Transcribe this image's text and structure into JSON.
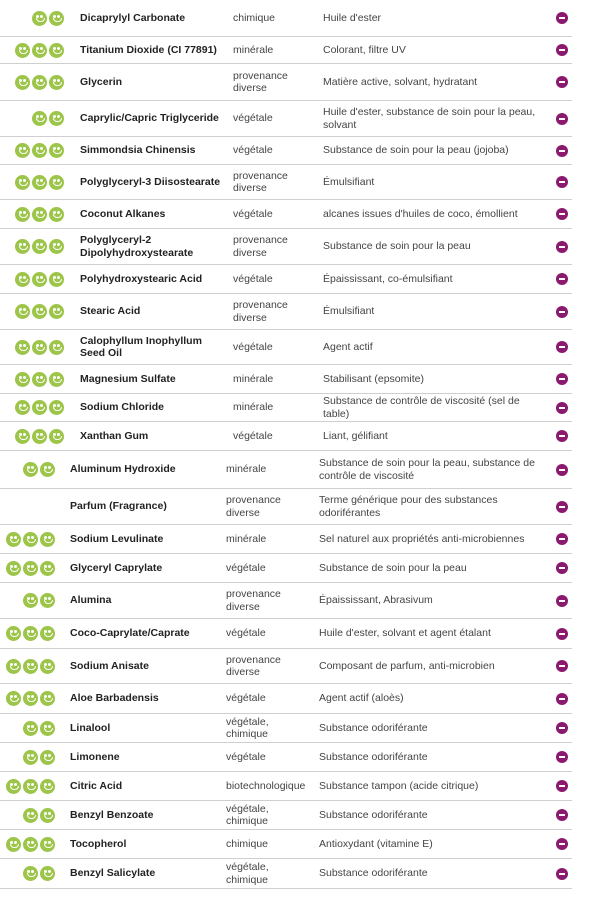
{
  "colors": {
    "smiley": "#9cc54a",
    "remove_button": "#8b1a6e",
    "divider": "#cfcfcf"
  },
  "ingredients": [
    {
      "rating": 2,
      "name": "Dicaprylyl Carbonate",
      "origin": "chimique",
      "function": "Huile d'ester"
    },
    {
      "rating": 3,
      "name": "Titanium Dioxide (CI 77891)",
      "origin": "minérale",
      "function": "Colorant, filtre UV"
    },
    {
      "rating": 3,
      "name": "Glycerin",
      "origin": "provenance diverse",
      "function": "Matière active, solvant, hydratant"
    },
    {
      "rating": 2,
      "name": "Caprylic/Capric Triglyceride",
      "origin": "végétale",
      "function": "Huile d'ester, substance de soin pour la peau, solvant"
    },
    {
      "rating": 3,
      "name": "Simmondsia Chinensis",
      "origin": "végétale",
      "function": "Substance de soin pour la peau (jojoba)"
    },
    {
      "rating": 3,
      "name": "Polyglyceryl-3 Diisostearate",
      "origin": "provenance diverse",
      "function": "Émulsifiant"
    },
    {
      "rating": 3,
      "name": "Coconut Alkanes",
      "origin": "végétale",
      "function": "alcanes issues d'huiles de coco, émollient"
    },
    {
      "rating": 3,
      "name": "Polyglyceryl-2 Dipolyhydroxystearate",
      "origin": "provenance diverse",
      "function": "Substance de soin pour la peau"
    },
    {
      "rating": 3,
      "name": "Polyhydroxystearic Acid",
      "origin": "végétale",
      "function": "Épaississant, co-émulsifiant"
    },
    {
      "rating": 3,
      "name": "Stearic Acid",
      "origin": "provenance diverse",
      "function": "Émulsifiant"
    },
    {
      "rating": 3,
      "name": "Calophyllum Inophyllum Seed Oil",
      "origin": "végétale",
      "function": "Agent actif"
    },
    {
      "rating": 3,
      "name": "Magnesium Sulfate",
      "origin": "minérale",
      "function": "Stabilisant (epsomite)"
    },
    {
      "rating": 3,
      "name": "Sodium Chloride",
      "origin": "minérale",
      "function": "Substance de contrôle de viscosité (sel de table)"
    },
    {
      "rating": 3,
      "name": "Xanthan Gum",
      "origin": "végétale",
      "function": "Liant, gélifiant"
    },
    {
      "rating": 2,
      "name": "Aluminum Hydroxide",
      "origin": "minérale",
      "function": "Substance de soin pour la peau, substance de contrôle de viscosité"
    },
    {
      "rating": 0,
      "name": "Parfum (Fragrance)",
      "origin": "provenance diverse",
      "function": "Terme générique pour des substances odoriférantes"
    },
    {
      "rating": 3,
      "name": "Sodium Levulinate",
      "origin": "minérale",
      "function": "Sel naturel aux propriétés anti-microbiennes"
    },
    {
      "rating": 3,
      "name": "Glyceryl Caprylate",
      "origin": "végétale",
      "function": "Substance de soin pour la peau"
    },
    {
      "rating": 2,
      "name": "Alumina",
      "origin": "provenance diverse",
      "function": "Épaississant, Abrasivum"
    },
    {
      "rating": 3,
      "name": "Coco-Caprylate/Caprate",
      "origin": "végétale",
      "function": "Huile d'ester, solvant et agent étalant"
    },
    {
      "rating": 3,
      "name": "Sodium Anisate",
      "origin": "provenance diverse",
      "function": "Composant de parfum, anti-microbien"
    },
    {
      "rating": 3,
      "name": "Aloe Barbadensis",
      "origin": "végétale",
      "function": "Agent actif (aloès)"
    },
    {
      "rating": 2,
      "name": "Linalool",
      "origin": "végétale, chimique",
      "function": "Substance odoriférante"
    },
    {
      "rating": 2,
      "name": "Limonene",
      "origin": "végétale",
      "function": "Substance odoriférante"
    },
    {
      "rating": 3,
      "name": "Citric Acid",
      "origin": "biotechnologique",
      "function": "Substance tampon (acide citrique)"
    },
    {
      "rating": 2,
      "name": "Benzyl Benzoate",
      "origin": "végétale, chimique",
      "function": "Substance odoriférante"
    },
    {
      "rating": 3,
      "name": "Tocopherol",
      "origin": "chimique",
      "function": "Antioxydant (vitamine E)"
    },
    {
      "rating": 2,
      "name": "Benzyl Salicylate",
      "origin": "végétale, chimique",
      "function": "Substance odoriférante"
    }
  ]
}
